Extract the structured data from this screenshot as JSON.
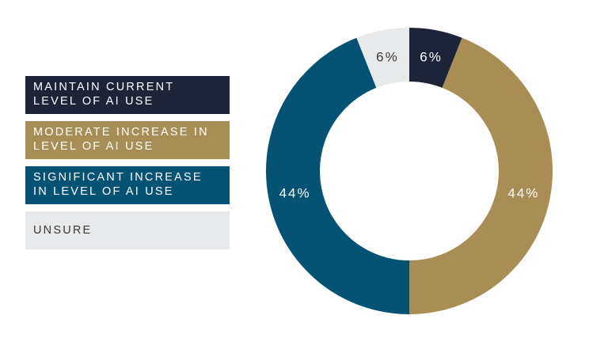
{
  "chart_data": {
    "type": "pie",
    "donut": true,
    "title": "",
    "slices": [
      {
        "name": "MAINTAIN CURRENT LEVEL OF AI USE",
        "value": 6,
        "label": "6%",
        "color": "#1e2438",
        "text_color": "#ffffff"
      },
      {
        "name": "MODERATE INCREASE IN LEVEL OF AI USE",
        "value": 44,
        "label": "44%",
        "color": "#a88e54",
        "text_color": "#ffffff"
      },
      {
        "name": "SIGNIFICANT INCREASE IN LEVEL OF AI USE",
        "value": 44,
        "label": "44%",
        "color": "#045274",
        "text_color": "#ffffff"
      },
      {
        "name": "UNSURE",
        "value": 6,
        "label": "6%",
        "color": "#e8e9ea",
        "text_color": "#3a3a3a"
      }
    ],
    "legend_placement": "left"
  },
  "legend": {
    "items": [
      {
        "line1": "MAINTAIN CURRENT",
        "line2": "LEVEL OF AI USE",
        "bg": "#1e2438",
        "fg": "#ffffff"
      },
      {
        "line1": "MODERATE INCREASE IN",
        "line2": "LEVEL OF AI USE",
        "bg": "#a88e54",
        "fg": "#ffffff"
      },
      {
        "line1": "SIGNIFICANT INCREASE",
        "line2": "IN LEVEL OF AI USE",
        "bg": "#045274",
        "fg": "#ffffff"
      },
      {
        "line1": "UNSURE",
        "line2": "",
        "bg": "#e8e9ea",
        "fg": "#3a3a3a"
      }
    ]
  }
}
